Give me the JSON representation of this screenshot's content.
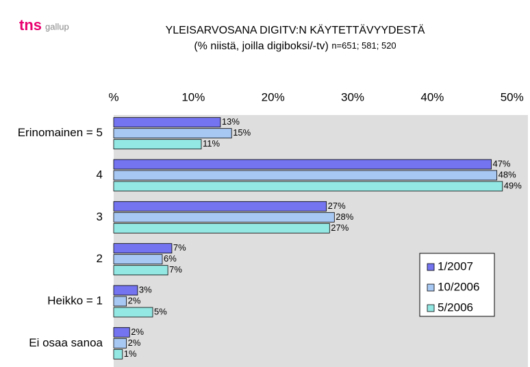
{
  "logo": {
    "brand": "tns",
    "sub": "gallup"
  },
  "chart_data": {
    "type": "hbar",
    "title": "YLEISARVOSANA DIGITV:N KÄYTETTÄVYYDESTÄ",
    "subtitle": "(% niistä, joilla digiboksi/-tv)",
    "note": "n=651; 581; 520",
    "categories": [
      "Erinomainen = 5",
      "4",
      "3",
      "2",
      "Heikko = 1",
      "Ei osaa sanoa"
    ],
    "series": [
      {
        "name": "1/2007",
        "color": "#7474f0",
        "values": [
          13.4,
          47.4,
          26.7,
          7.3,
          3.0,
          2.0
        ],
        "value_labels": [
          "13%",
          "47%",
          "27%",
          "7%",
          "3%",
          "2%"
        ]
      },
      {
        "name": "10/2006",
        "color": "#a8c8f4",
        "values": [
          14.8,
          48.1,
          27.7,
          6.1,
          1.6,
          1.6
        ],
        "value_labels": [
          "15%",
          "48%",
          "28%",
          "6%",
          "2%",
          "2%"
        ]
      },
      {
        "name": "5/2006",
        "color": "#94e8e4",
        "values": [
          11.0,
          48.8,
          27.1,
          6.8,
          4.9,
          1.1
        ],
        "value_labels": [
          "11%",
          "49%",
          "27%",
          "7%",
          "5%",
          "1%"
        ]
      }
    ],
    "xlim": [
      0,
      52
    ],
    "xticks": [
      {
        "value": 0,
        "label": "%"
      },
      {
        "value": 10,
        "label": "10%"
      },
      {
        "value": 20,
        "label": "20%"
      },
      {
        "value": 30,
        "label": "30%"
      },
      {
        "value": 40,
        "label": "40%"
      },
      {
        "value": 50,
        "label": "50%"
      }
    ],
    "legend": "right",
    "background": "#dedede"
  }
}
